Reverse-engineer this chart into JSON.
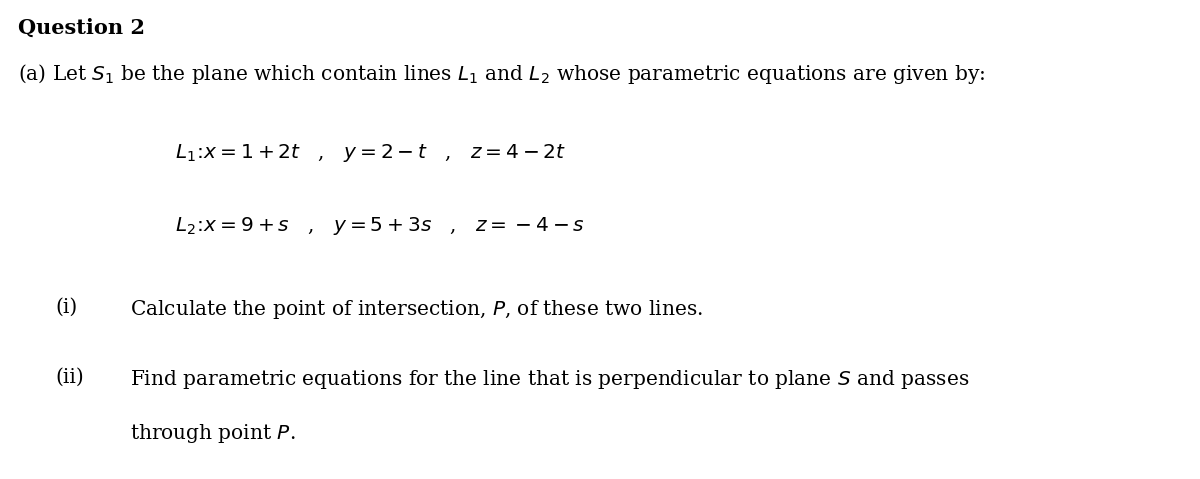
{
  "background_color": "#ffffff",
  "title": "Question 2",
  "line1": "(a) Let $S_1$ be the plane which contain lines $L_1$ and $L_2$ whose parametric equations are given by:",
  "eq_L1": "$L_1\\!:\\!x=1+2t$   ,   $y=2-t$   ,   $z=4-2t$",
  "eq_L2": "$L_2\\!:\\!x=9+s$   ,   $y=5+3s$   ,   $z=-4-s$",
  "part_i_label": "(i)",
  "part_i_text": "Calculate the point of intersection, $P$, of these two lines.",
  "part_ii_label": "(ii)",
  "part_ii_line1": "Find parametric equations for the line that is perpendicular to plane $S$ and passes",
  "part_ii_line2": "through point $P$.",
  "font_size_title": 15,
  "font_size_body": 14.5,
  "font_size_eq": 14.5,
  "text_color": "#000000",
  "fig_width": 12.0,
  "fig_height": 4.79,
  "dpi": 100
}
